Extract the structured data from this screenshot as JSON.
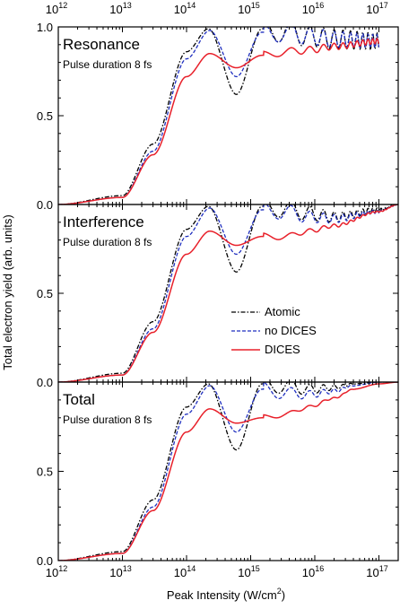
{
  "chart_data": {
    "type": "line",
    "x_scale": "log",
    "xlim": [
      1000000000000.0,
      2e+17
    ],
    "ylim": [
      0,
      1
    ],
    "xlabel_main": "Peak Intensity (W/cm",
    "xlabel_sup": "2",
    "xlabel_tail": ")",
    "ylabel": "Total electron yield (arb. units)",
    "x_tick_labels": [
      {
        "base": "10",
        "exp": "12"
      },
      {
        "base": "10",
        "exp": "13"
      },
      {
        "base": "10",
        "exp": "14"
      },
      {
        "base": "10",
        "exp": "15"
      },
      {
        "base": "10",
        "exp": "16"
      },
      {
        "base": "10",
        "exp": "17"
      }
    ],
    "y_tick_labels": [
      "0.0",
      "0.5",
      "1.0"
    ],
    "legend": {
      "placement": "middle panel, lower-right",
      "entries": [
        {
          "name": "Atomic",
          "style": "dash-dot",
          "color": "#000000"
        },
        {
          "name": "no DICES",
          "style": "dashed",
          "color": "#1f2fbf"
        },
        {
          "name": "DICES",
          "style": "solid",
          "color": "#e8202a"
        }
      ]
    },
    "panels": [
      {
        "title": "Resonance",
        "subtitle": "Pulse duration 8 fs",
        "series": [
          {
            "name": "Atomic",
            "x": [
              1000000000000.0,
              10000000000000.0,
              30000000000000.0,
              100000000000000.0,
              220000000000000.0,
              600000000000000.0,
              1500000000000000.0,
              3500000000000000.0,
              8000000000000000.0,
              2e+16,
              1e+17
            ],
            "values": [
              0.0,
              0.05,
              0.34,
              0.86,
              0.99,
              0.62,
              0.99,
              0.98,
              0.95,
              0.93,
              0.92
            ]
          },
          {
            "name": "no DICES",
            "x": [
              1000000000000.0,
              10000000000000.0,
              30000000000000.0,
              100000000000000.0,
              230000000000000.0,
              600000000000000.0,
              1500000000000000.0,
              3500000000000000.0,
              8000000000000000.0,
              2e+16,
              1e+17
            ],
            "values": [
              0.0,
              0.04,
              0.3,
              0.82,
              0.98,
              0.72,
              0.97,
              0.97,
              0.95,
              0.93,
              0.92
            ]
          },
          {
            "name": "DICES",
            "x": [
              1000000000000.0,
              10000000000000.0,
              30000000000000.0,
              100000000000000.0,
              230000000000000.0,
              600000000000000.0,
              1500000000000000.0,
              3500000000000000.0,
              8000000000000000.0,
              2e+16,
              1e+17
            ],
            "values": [
              0.0,
              0.04,
              0.28,
              0.72,
              0.85,
              0.77,
              0.84,
              0.86,
              0.87,
              0.89,
              0.92
            ]
          }
        ]
      },
      {
        "title": "Interference",
        "subtitle": "Pulse duration 8 fs",
        "series": [
          {
            "name": "Atomic",
            "x": [
              1000000000000.0,
              10000000000000.0,
              30000000000000.0,
              100000000000000.0,
              220000000000000.0,
              600000000000000.0,
              1500000000000000.0,
              3500000000000000.0,
              8000000000000000.0,
              2e+16,
              1e+17,
              2e+17
            ],
            "values": [
              0.0,
              0.05,
              0.34,
              0.86,
              0.99,
              0.62,
              0.99,
              0.98,
              0.95,
              0.93,
              0.97,
              1.0
            ]
          },
          {
            "name": "no DICES",
            "x": [
              1000000000000.0,
              10000000000000.0,
              30000000000000.0,
              100000000000000.0,
              230000000000000.0,
              600000000000000.0,
              1500000000000000.0,
              3500000000000000.0,
              8000000000000000.0,
              2e+16,
              1e+17,
              2e+17
            ],
            "values": [
              0.0,
              0.04,
              0.3,
              0.82,
              0.98,
              0.72,
              0.97,
              0.96,
              0.93,
              0.92,
              0.96,
              1.0
            ]
          },
          {
            "name": "DICES",
            "x": [
              1000000000000.0,
              10000000000000.0,
              30000000000000.0,
              100000000000000.0,
              230000000000000.0,
              600000000000000.0,
              1500000000000000.0,
              3500000000000000.0,
              8000000000000000.0,
              2e+16,
              1e+17,
              2e+17
            ],
            "values": [
              0.0,
              0.04,
              0.28,
              0.72,
              0.85,
              0.77,
              0.82,
              0.82,
              0.85,
              0.88,
              0.96,
              1.0
            ]
          }
        ]
      },
      {
        "title": "Total",
        "subtitle": "Pulse duration 8 fs",
        "series": [
          {
            "name": "Atomic",
            "x": [
              1000000000000.0,
              10000000000000.0,
              30000000000000.0,
              100000000000000.0,
              220000000000000.0,
              600000000000000.0,
              1500000000000000.0,
              3500000000000000.0,
              8000000000000000.0,
              2e+16,
              4e+16,
              1e+17,
              2e+17
            ],
            "values": [
              0.0,
              0.05,
              0.34,
              0.86,
              0.99,
              0.62,
              0.99,
              0.98,
              0.96,
              0.97,
              0.99,
              1.0,
              1.0
            ]
          },
          {
            "name": "no DICES",
            "x": [
              1000000000000.0,
              10000000000000.0,
              30000000000000.0,
              100000000000000.0,
              230000000000000.0,
              600000000000000.0,
              1500000000000000.0,
              3500000000000000.0,
              8000000000000000.0,
              2e+16,
              4e+16,
              1e+17,
              2e+17
            ],
            "values": [
              0.0,
              0.04,
              0.3,
              0.82,
              0.98,
              0.72,
              0.96,
              0.94,
              0.93,
              0.95,
              0.98,
              1.0,
              1.0
            ]
          },
          {
            "name": "DICES",
            "x": [
              1000000000000.0,
              10000000000000.0,
              30000000000000.0,
              100000000000000.0,
              230000000000000.0,
              600000000000000.0,
              1500000000000000.0,
              3500000000000000.0,
              8000000000000000.0,
              2e+16,
              4e+16,
              1e+17,
              2e+17
            ],
            "values": [
              0.0,
              0.04,
              0.28,
              0.72,
              0.85,
              0.77,
              0.8,
              0.82,
              0.86,
              0.91,
              0.96,
              0.99,
              1.0
            ]
          }
        ]
      }
    ]
  }
}
